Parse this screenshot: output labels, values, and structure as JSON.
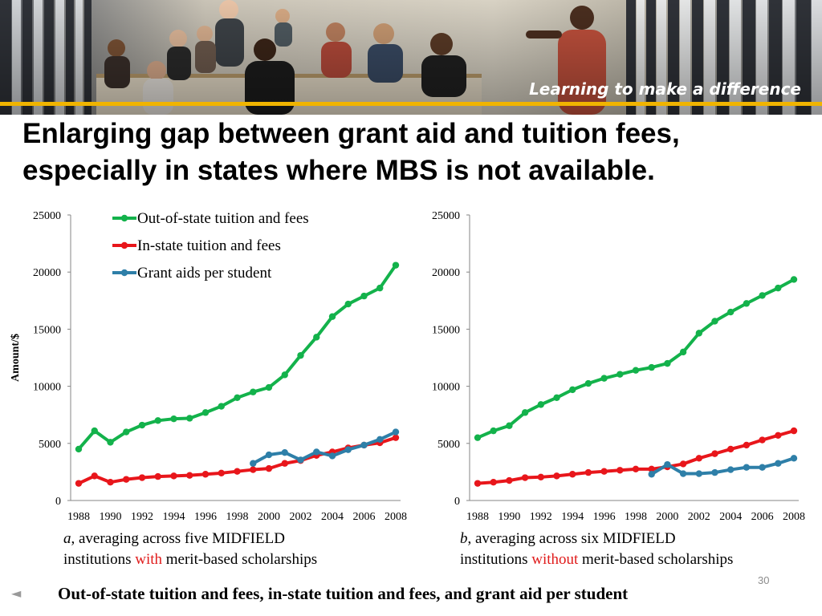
{
  "banner": {
    "tagline": "Learning to make a difference"
  },
  "slide": {
    "title_line1": "Enlarging gap between grant aid and tuition fees,",
    "title_line2": "especially in states where MBS is not available.",
    "page_number": "30",
    "bottom_caption": "Out-of-state tuition and fees, in-state tuition and fees, and grant aid per student",
    "caption_a": {
      "letter": "a",
      "text1": ", averaging across five MIDFIELD",
      "text2": "institutions ",
      "highlight": "with",
      "text3": " merit-based scholarships"
    },
    "caption_b": {
      "letter": "b",
      "text1": ", averaging across six MIDFIELD",
      "text2": "institutions ",
      "highlight": "without",
      "text3": " merit-based scholarships"
    }
  },
  "colors": {
    "out_of_state": "#13b24b",
    "in_state": "#e8161b",
    "grant": "#2e7fa8",
    "highlight": "#e01b1b"
  },
  "chart_data": [
    {
      "type": "line",
      "ylabel": "Amount/$",
      "xlabel": "",
      "ylim": [
        0,
        25000
      ],
      "yticks": [
        0,
        5000,
        10000,
        15000,
        20000,
        25000
      ],
      "xticks": [
        1988,
        1990,
        1992,
        1994,
        1996,
        1998,
        2000,
        2002,
        2004,
        2006,
        2008
      ],
      "legend": "top-left",
      "series": [
        {
          "name": "Out-of-state tuition and fees",
          "x": [
            1988,
            1989,
            1990,
            1991,
            1992,
            1993,
            1994,
            1995,
            1996,
            1997,
            1998,
            1999,
            2000,
            2001,
            2002,
            2003,
            2004,
            2005,
            2006,
            2007,
            2008
          ],
          "values": [
            4500,
            6100,
            5100,
            6000,
            6600,
            7000,
            7150,
            7200,
            7700,
            8250,
            9000,
            9500,
            9900,
            11000,
            12700,
            14300,
            16100,
            17200,
            17900,
            18600,
            20600
          ]
        },
        {
          "name": "In-state tuition and fees",
          "x": [
            1988,
            1989,
            1990,
            1991,
            1992,
            1993,
            1994,
            1995,
            1996,
            1997,
            1998,
            1999,
            2000,
            2001,
            2002,
            2003,
            2004,
            2005,
            2006,
            2007,
            2008
          ],
          "values": [
            1500,
            2150,
            1600,
            1850,
            2000,
            2100,
            2150,
            2200,
            2300,
            2400,
            2550,
            2700,
            2800,
            3250,
            3500,
            3950,
            4250,
            4600,
            4850,
            5050,
            5500
          ]
        },
        {
          "name": "Grant aids per student",
          "x": [
            1999,
            2000,
            2001,
            2002,
            2003,
            2004,
            2005,
            2006,
            2007,
            2008
          ],
          "values": [
            3250,
            4000,
            4200,
            3550,
            4250,
            3900,
            4450,
            4850,
            5350,
            6000
          ]
        }
      ]
    },
    {
      "type": "line",
      "ylim": [
        0,
        25000
      ],
      "yticks": [
        0,
        5000,
        10000,
        15000,
        20000,
        25000
      ],
      "xticks": [
        1988,
        1990,
        1992,
        1994,
        1996,
        1998,
        2000,
        2002,
        2004,
        2006,
        2008
      ],
      "series": [
        {
          "name": "Out-of-state tuition and fees",
          "x": [
            1988,
            1989,
            1990,
            1991,
            1992,
            1993,
            1994,
            1995,
            1996,
            1997,
            1998,
            1999,
            2000,
            2001,
            2002,
            2003,
            2004,
            2005,
            2006,
            2007,
            2008
          ],
          "values": [
            5500,
            6100,
            6550,
            7700,
            8400,
            9000,
            9700,
            10250,
            10700,
            11050,
            11400,
            11650,
            12000,
            13000,
            14650,
            15700,
            16500,
            17250,
            17950,
            18600,
            19350
          ]
        },
        {
          "name": "In-state tuition and fees",
          "x": [
            1988,
            1989,
            1990,
            1991,
            1992,
            1993,
            1994,
            1995,
            1996,
            1997,
            1998,
            1999,
            2000,
            2001,
            2002,
            2003,
            2004,
            2005,
            2006,
            2007,
            2008
          ],
          "values": [
            1500,
            1600,
            1750,
            2000,
            2050,
            2150,
            2300,
            2450,
            2550,
            2650,
            2750,
            2750,
            2950,
            3200,
            3700,
            4100,
            4500,
            4850,
            5300,
            5700,
            6100
          ]
        },
        {
          "name": "Grant aids per student",
          "x": [
            1999,
            2000,
            2001,
            2002,
            2003,
            2004,
            2005,
            2006,
            2007,
            2008
          ],
          "values": [
            2300,
            3150,
            2350,
            2350,
            2450,
            2700,
            2900,
            2900,
            3250,
            3700
          ]
        }
      ]
    }
  ]
}
